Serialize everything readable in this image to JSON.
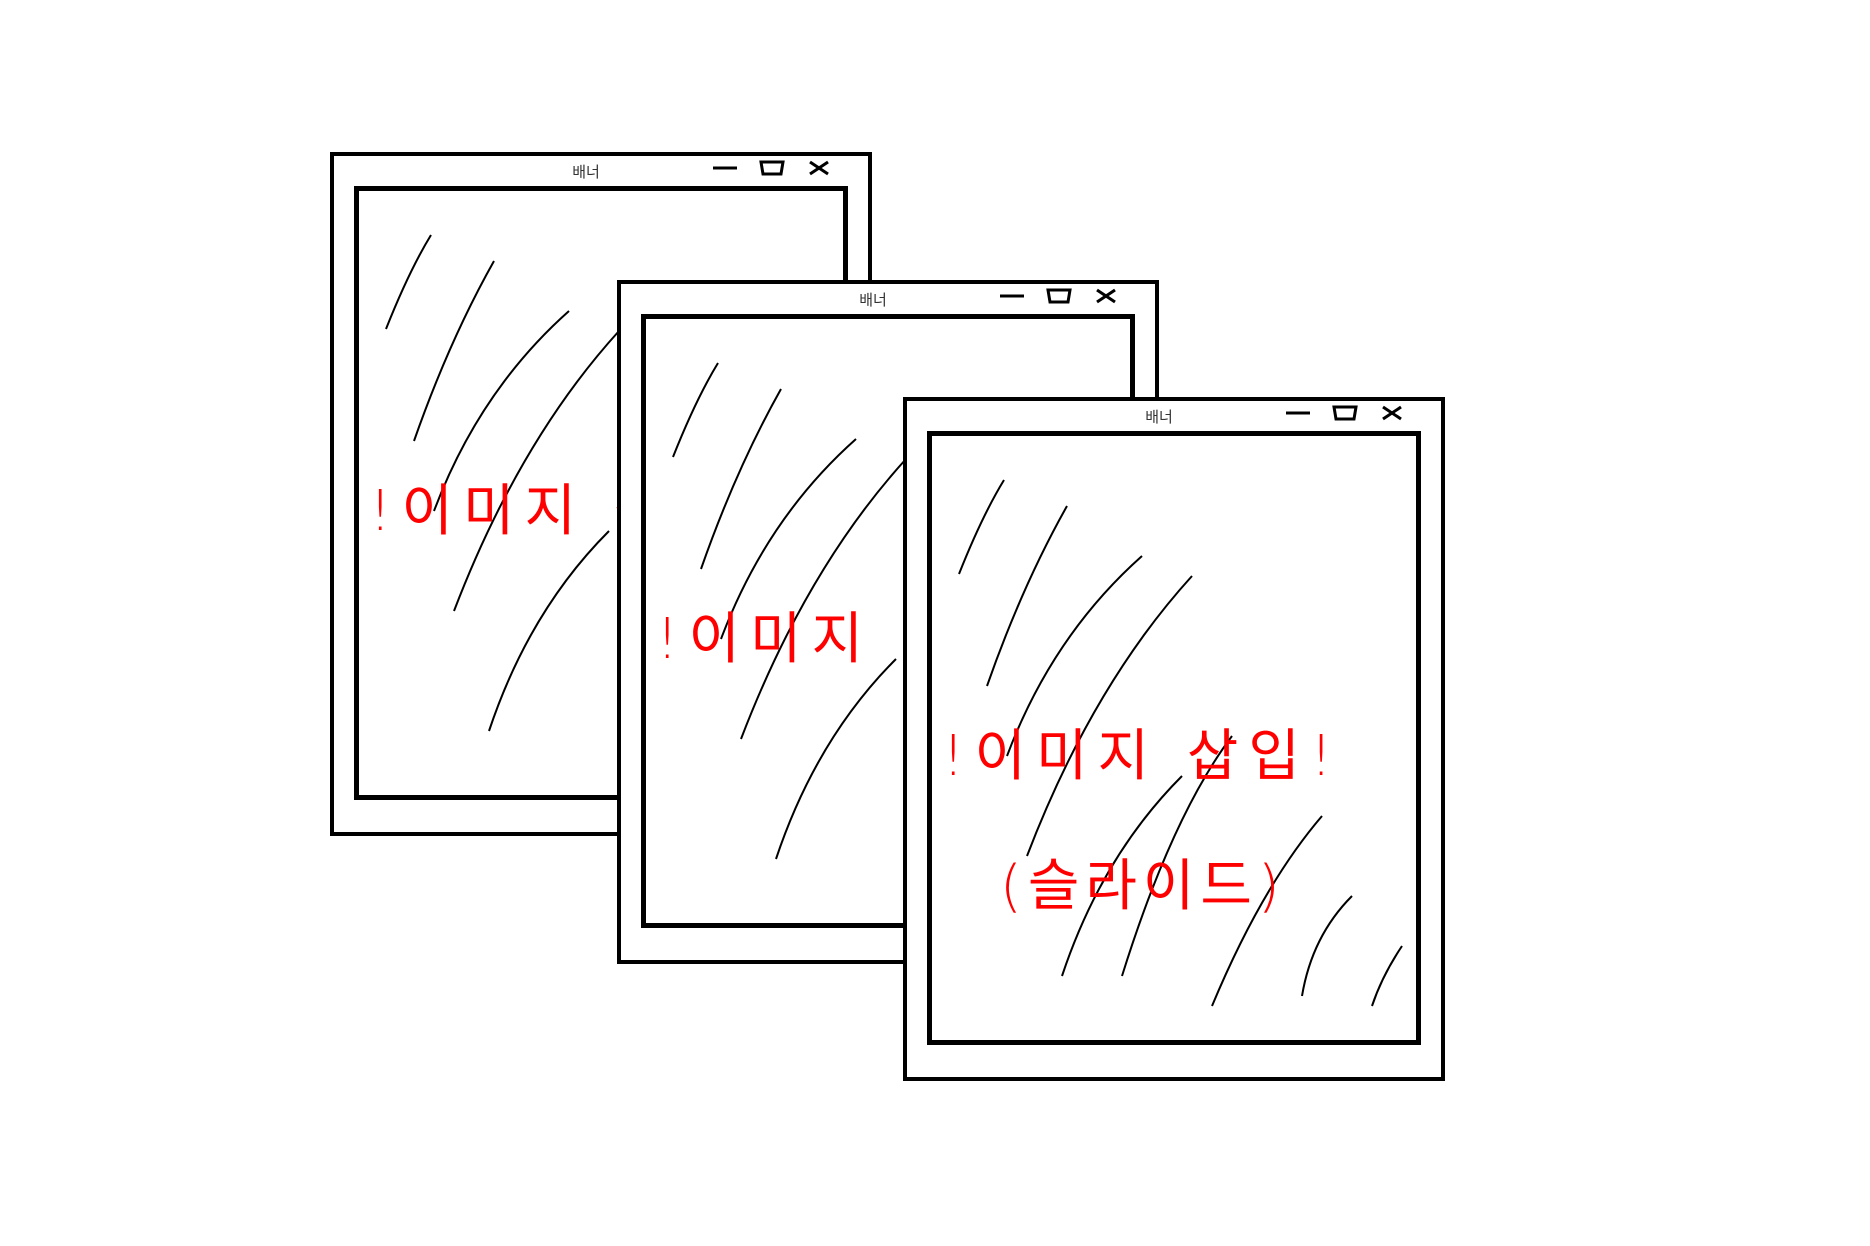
{
  "windows": [
    {
      "title": "배너",
      "label": "!이미지 삽입!",
      "sublabel": ""
    },
    {
      "title": "배너",
      "label": "!이미지 삽입!",
      "sublabel": ""
    },
    {
      "title": "배너",
      "label": "!이미지 삽입!",
      "sublabel": "(슬라이드)"
    }
  ],
  "icons": {
    "minimize": "minimize-icon",
    "maximize": "maximize-icon",
    "close": "close-icon"
  },
  "colors": {
    "stroke": "#000000",
    "annotation": "#ff0000"
  }
}
